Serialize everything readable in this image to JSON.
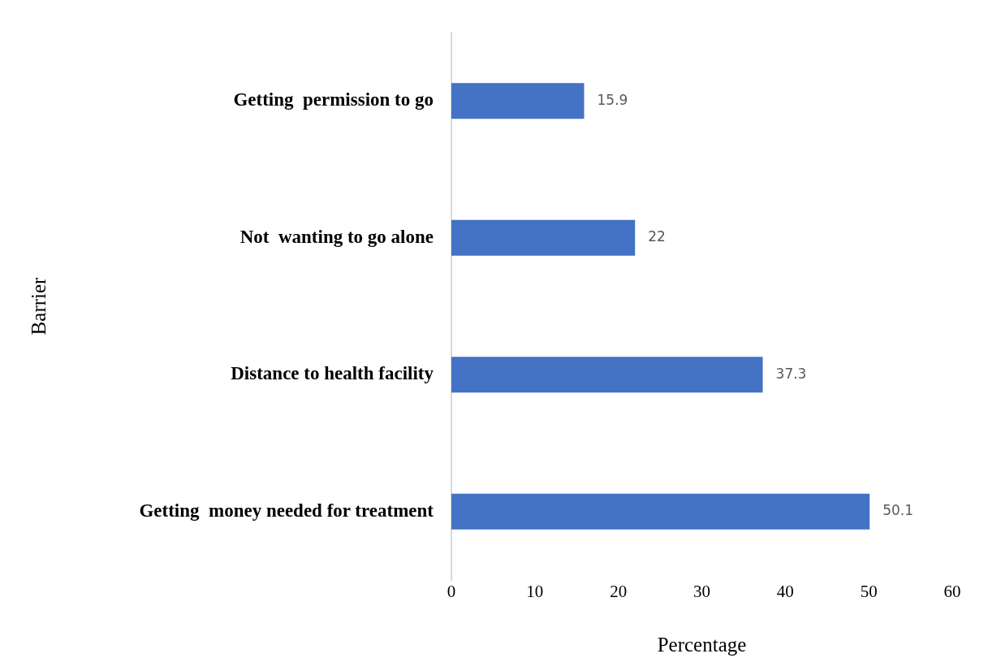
{
  "chart_data": {
    "type": "bar",
    "orientation": "horizontal",
    "categories": [
      "Getting  permission to go",
      "Not  wanting to go alone",
      "Distance to health facility",
      "Getting  money needed for treatment"
    ],
    "values": [
      15.9,
      22,
      37.3,
      50.1
    ],
    "color": "#4472c4",
    "xlim": [
      0,
      60
    ],
    "xticks": [
      0,
      10,
      20,
      30,
      40,
      50,
      60
    ],
    "xlabel": "Percentage",
    "ylabel": "Barrier",
    "data_labels": true,
    "grid": false,
    "legend": false
  }
}
